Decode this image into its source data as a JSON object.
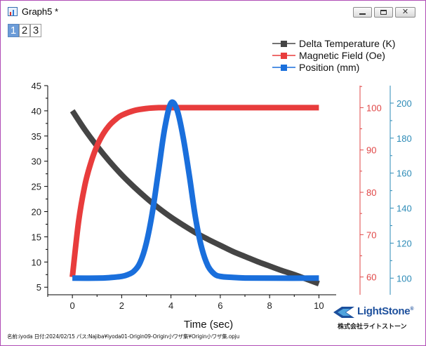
{
  "window": {
    "title": "Graph5 *",
    "buttons": {
      "minimize": "minimize",
      "maximize": "maximize",
      "close": "close"
    }
  },
  "layer_tabs": [
    "1",
    "2",
    "3"
  ],
  "active_layer": 0,
  "footer": {
    "info": "名前:iyoda 日付:2024/02/15 パス:Najiba¥iyoda01-Origin09-Origin小ワザ集¥Origin小ワザ集.opju"
  },
  "logo": {
    "brand": "LightStone",
    "registered": "®",
    "company": "株式会社ライトストーン"
  },
  "colors": {
    "delta_temperature": "#454545",
    "magnetic_field": "#e83c3c",
    "position": "#1a6fdc",
    "red_axis": "#e04646",
    "blue_axis": "#2d8bb7"
  },
  "chart_data": {
    "type": "line",
    "xlabel": "Time (sec)",
    "x_ticks": [
      "0",
      "2",
      "4",
      "6",
      "8",
      "10"
    ],
    "xlim": [
      -1,
      10.7
    ],
    "y_left": {
      "ticks": [
        "5",
        "10",
        "15",
        "20",
        "25",
        "30",
        "35",
        "40",
        "45"
      ],
      "ylim": [
        3.5,
        45
      ]
    },
    "y_right1": {
      "ticks": [
        "60",
        "70",
        "80",
        "90",
        "100"
      ],
      "ylim": [
        55.8,
        105.2
      ]
    },
    "y_right2": {
      "ticks": [
        "100",
        "120",
        "140",
        "160",
        "180",
        "200"
      ],
      "ylim": [
        90.5,
        210
      ]
    },
    "legend_position": "top-right",
    "series": [
      {
        "name": "Delta Temperature (K)",
        "axis": "left",
        "color": "#454545",
        "x": [
          0,
          0.5,
          1,
          1.5,
          2,
          2.5,
          3,
          3.5,
          4,
          4.5,
          5,
          5.5,
          6,
          6.5,
          7,
          7.5,
          8,
          8.5,
          9,
          9.5,
          10
        ],
        "y": [
          40.0,
          36.3,
          33.0,
          30.0,
          27.3,
          24.9,
          22.7,
          20.7,
          18.9,
          17.3,
          15.8,
          14.5,
          13.3,
          12.1,
          11.1,
          10.1,
          9.2,
          8.3,
          7.5,
          6.6,
          5.7
        ]
      },
      {
        "name": "Magnetic Field (Oe)",
        "axis": "right1",
        "color": "#e83c3c",
        "x": [
          0,
          0.25,
          0.5,
          0.75,
          1,
          1.25,
          1.5,
          1.75,
          2,
          2.5,
          3,
          3.5,
          4,
          5,
          6,
          7,
          8,
          9,
          10
        ],
        "y": [
          60.0,
          73.0,
          81.5,
          87.0,
          91.0,
          93.8,
          95.8,
          97.2,
          98.2,
          99.3,
          99.8,
          100.0,
          100.0,
          100.0,
          100.0,
          100.0,
          100.0,
          100.0,
          100.0
        ]
      },
      {
        "name": "Position (mm)",
        "axis": "right2",
        "color": "#1a6fdc",
        "x": [
          0,
          1,
          1.5,
          2,
          2.25,
          2.5,
          2.75,
          3,
          3.25,
          3.5,
          3.75,
          4,
          4.25,
          4.5,
          4.75,
          5,
          5.25,
          5.5,
          5.75,
          6,
          6.5,
          7,
          8,
          10
        ],
        "y": [
          100.0,
          100.0,
          100.3,
          101.0,
          102.0,
          104.0,
          109.0,
          120.0,
          138.0,
          162.0,
          186.0,
          200.0,
          196.0,
          180.0,
          158.0,
          134.0,
          117.0,
          107.0,
          102.5,
          101.0,
          100.4,
          100.1,
          100.0,
          100.0
        ]
      }
    ]
  }
}
